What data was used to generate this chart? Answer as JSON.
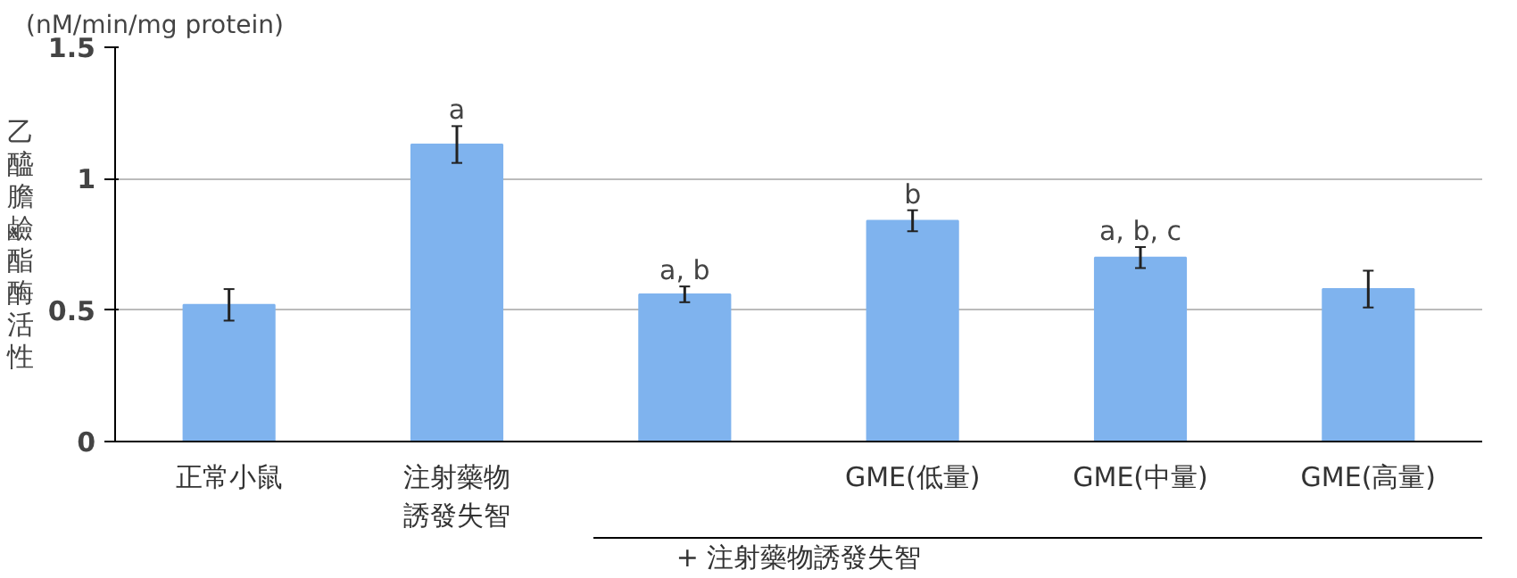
{
  "chart_data": {
    "type": "bar",
    "ylabel": "乙醯膽鹼酯酶活性",
    "categories": [
      "正常小鼠",
      "注射藥物誘發失智",
      null,
      "GME(低量)",
      "GME(中量)",
      "GME(高量)"
    ],
    "values": [
      0.52,
      1.13,
      0.56,
      0.84,
      0.7,
      0.58
    ],
    "errors": [
      0.06,
      0.07,
      0.03,
      0.04,
      0.04,
      0.07
    ],
    "color": "#7fb3ee",
    "ylim": [
      0,
      1.5
    ],
    "yticks": [
      0,
      0.5,
      1,
      1.5
    ],
    "grid": "y",
    "annotations": [
      "(nM/min/mg protein)",
      "+ 注射藥物誘發失智",
      {
        "text": "a",
        "x": "注射藥物誘發失智",
        "y": 1.2
      },
      {
        "text": "a, b",
        "y": 0.59
      },
      {
        "text": "b",
        "x": "GME(低量)",
        "y": 0.88
      },
      {
        "text": "a, b, c",
        "x": "GME(中量)",
        "y": 0.74
      }
    ]
  }
}
